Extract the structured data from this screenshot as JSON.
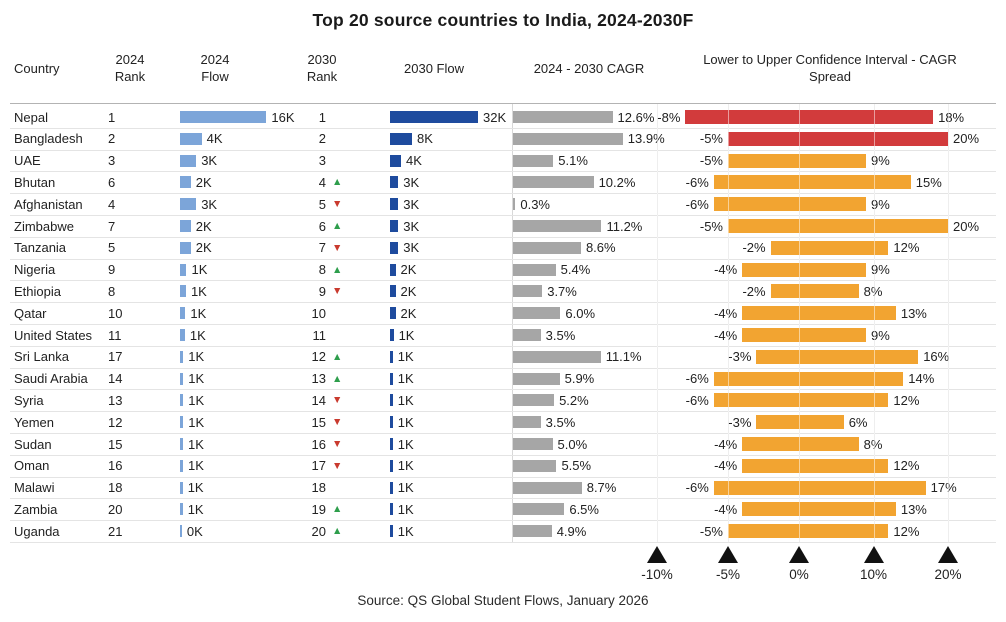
{
  "title": "Top 20 source countries to India, 2024-2030F",
  "source": "Source: QS Global Student Flows, January 2026",
  "header": {
    "country": "Country",
    "rank_2024": "2024 Rank",
    "flow_2024": "2024 Flow",
    "rank_2030": "2030 Rank",
    "flow_2030": "2030 Flow",
    "cagr": "2024 - 2030 CAGR",
    "ci": "Lower to Upper Confidence Interval - CAGR Spread"
  },
  "colors": {
    "flow_2024_bar": "#7CA5D9",
    "flow_2030_bar": "#1E4B9E",
    "cagr_bar": "#A6A6A6",
    "ci_orange": "#F2A431",
    "ci_red": "#D23B3C",
    "arrow_up": "#2E9E4C",
    "arrow_down": "#C93A2E"
  },
  "axis": {
    "ticks": [
      {
        "label": "-10%",
        "value": -10
      },
      {
        "label": "-5%",
        "value": -5
      },
      {
        "label": "0%",
        "value": 0
      },
      {
        "label": "10%",
        "value": 10
      },
      {
        "label": "20%",
        "value": 20
      }
    ]
  },
  "chart_data": {
    "type": "table",
    "title": "Top 20 source countries to India, 2024-2030F",
    "columns": [
      "Country",
      "2024 Rank",
      "2024 Flow",
      "2030 Rank",
      "2030 Flow",
      "2024 - 2030 CAGR",
      "Lower to Upper Confidence Interval - CAGR Spread"
    ],
    "rows": [
      {
        "country": "Nepal",
        "rank_2024": "1",
        "flow_2024_label": "16K",
        "flow_2024_value": 16,
        "rank_2030": "1",
        "rank_change": "none",
        "flow_2030_label": "32K",
        "flow_2030_value": 32,
        "cagr_label": "12.6%",
        "cagr_value": 12.6,
        "ci_low_label": "-8%",
        "ci_low": -8,
        "ci_high_label": "18%",
        "ci_high": 18,
        "ci_color": "red"
      },
      {
        "country": "Bangladesh",
        "rank_2024": "2",
        "flow_2024_label": "4K",
        "flow_2024_value": 4,
        "rank_2030": "2",
        "rank_change": "none",
        "flow_2030_label": "8K",
        "flow_2030_value": 8,
        "cagr_label": "13.9%",
        "cagr_value": 13.9,
        "ci_low_label": "-5%",
        "ci_low": -5,
        "ci_high_label": "20%",
        "ci_high": 20,
        "ci_color": "red"
      },
      {
        "country": "UAE",
        "rank_2024": "3",
        "flow_2024_label": "3K",
        "flow_2024_value": 3,
        "rank_2030": "3",
        "rank_change": "none",
        "flow_2030_label": "4K",
        "flow_2030_value": 4,
        "cagr_label": "5.1%",
        "cagr_value": 5.1,
        "ci_low_label": "-5%",
        "ci_low": -5,
        "ci_high_label": "9%",
        "ci_high": 9,
        "ci_color": "orange"
      },
      {
        "country": "Bhutan",
        "rank_2024": "6",
        "flow_2024_label": "2K",
        "flow_2024_value": 2,
        "rank_2030": "4",
        "rank_change": "up",
        "flow_2030_label": "3K",
        "flow_2030_value": 3,
        "cagr_label": "10.2%",
        "cagr_value": 10.2,
        "ci_low_label": "-6%",
        "ci_low": -6,
        "ci_high_label": "15%",
        "ci_high": 15,
        "ci_color": "orange"
      },
      {
        "country": "Afghanistan",
        "rank_2024": "4",
        "flow_2024_label": "3K",
        "flow_2024_value": 3,
        "rank_2030": "5",
        "rank_change": "down",
        "flow_2030_label": "3K",
        "flow_2030_value": 3,
        "cagr_label": "0.3%",
        "cagr_value": 0.3,
        "ci_low_label": "-6%",
        "ci_low": -6,
        "ci_high_label": "9%",
        "ci_high": 9,
        "ci_color": "orange"
      },
      {
        "country": "Zimbabwe",
        "rank_2024": "7",
        "flow_2024_label": "2K",
        "flow_2024_value": 2,
        "rank_2030": "6",
        "rank_change": "up",
        "flow_2030_label": "3K",
        "flow_2030_value": 3,
        "cagr_label": "11.2%",
        "cagr_value": 11.2,
        "ci_low_label": "-5%",
        "ci_low": -5,
        "ci_high_label": "20%",
        "ci_high": 20,
        "ci_color": "orange"
      },
      {
        "country": "Tanzania",
        "rank_2024": "5",
        "flow_2024_label": "2K",
        "flow_2024_value": 2,
        "rank_2030": "7",
        "rank_change": "down",
        "flow_2030_label": "3K",
        "flow_2030_value": 3,
        "cagr_label": "8.6%",
        "cagr_value": 8.6,
        "ci_low_label": "-2%",
        "ci_low": -2,
        "ci_high_label": "12%",
        "ci_high": 12,
        "ci_color": "orange"
      },
      {
        "country": "Nigeria",
        "rank_2024": "9",
        "flow_2024_label": "1K",
        "flow_2024_value": 1.2,
        "rank_2030": "8",
        "rank_change": "up",
        "flow_2030_label": "2K",
        "flow_2030_value": 2,
        "cagr_label": "5.4%",
        "cagr_value": 5.4,
        "ci_low_label": "-4%",
        "ci_low": -4,
        "ci_high_label": "9%",
        "ci_high": 9,
        "ci_color": "orange"
      },
      {
        "country": "Ethiopia",
        "rank_2024": "8",
        "flow_2024_label": "1K",
        "flow_2024_value": 1.1,
        "rank_2030": "9",
        "rank_change": "down",
        "flow_2030_label": "2K",
        "flow_2030_value": 2,
        "cagr_label": "3.7%",
        "cagr_value": 3.7,
        "ci_low_label": "-2%",
        "ci_low": -2,
        "ci_high_label": "8%",
        "ci_high": 8,
        "ci_color": "orange"
      },
      {
        "country": "Qatar",
        "rank_2024": "10",
        "flow_2024_label": "1K",
        "flow_2024_value": 1,
        "rank_2030": "10",
        "rank_change": "none",
        "flow_2030_label": "2K",
        "flow_2030_value": 2,
        "cagr_label": "6.0%",
        "cagr_value": 6.0,
        "ci_low_label": "-4%",
        "ci_low": -4,
        "ci_high_label": "13%",
        "ci_high": 13,
        "ci_color": "orange"
      },
      {
        "country": "United States",
        "rank_2024": "11",
        "flow_2024_label": "1K",
        "flow_2024_value": 0.9,
        "rank_2030": "11",
        "rank_change": "none",
        "flow_2030_label": "1K",
        "flow_2030_value": 1.3,
        "cagr_label": "3.5%",
        "cagr_value": 3.5,
        "ci_low_label": "-4%",
        "ci_low": -4,
        "ci_high_label": "9%",
        "ci_high": 9,
        "ci_color": "orange"
      },
      {
        "country": "Sri Lanka",
        "rank_2024": "17",
        "flow_2024_label": "1K",
        "flow_2024_value": 0.6,
        "rank_2030": "12",
        "rank_change": "up",
        "flow_2030_label": "1K",
        "flow_2030_value": 1,
        "cagr_label": "11.1%",
        "cagr_value": 11.1,
        "ci_low_label": "-3%",
        "ci_low": -3,
        "ci_high_label": "16%",
        "ci_high": 16,
        "ci_color": "orange"
      },
      {
        "country": "Saudi Arabia",
        "rank_2024": "14",
        "flow_2024_label": "1K",
        "flow_2024_value": 0.6,
        "rank_2030": "13",
        "rank_change": "up",
        "flow_2030_label": "1K",
        "flow_2030_value": 1,
        "cagr_label": "5.9%",
        "cagr_value": 5.9,
        "ci_low_label": "-6%",
        "ci_low": -6,
        "ci_high_label": "14%",
        "ci_high": 14,
        "ci_color": "orange"
      },
      {
        "country": "Syria",
        "rank_2024": "13",
        "flow_2024_label": "1K",
        "flow_2024_value": 0.6,
        "rank_2030": "14",
        "rank_change": "down",
        "flow_2030_label": "1K",
        "flow_2030_value": 1,
        "cagr_label": "5.2%",
        "cagr_value": 5.2,
        "ci_low_label": "-6%",
        "ci_low": -6,
        "ci_high_label": "12%",
        "ci_high": 12,
        "ci_color": "orange"
      },
      {
        "country": "Yemen",
        "rank_2024": "12",
        "flow_2024_label": "1K",
        "flow_2024_value": 0.6,
        "rank_2030": "15",
        "rank_change": "down",
        "flow_2030_label": "1K",
        "flow_2030_value": 1,
        "cagr_label": "3.5%",
        "cagr_value": 3.5,
        "ci_low_label": "-3%",
        "ci_low": -3,
        "ci_high_label": "6%",
        "ci_high": 6,
        "ci_color": "orange"
      },
      {
        "country": "Sudan",
        "rank_2024": "15",
        "flow_2024_label": "1K",
        "flow_2024_value": 0.55,
        "rank_2030": "16",
        "rank_change": "down",
        "flow_2030_label": "1K",
        "flow_2030_value": 1,
        "cagr_label": "5.0%",
        "cagr_value": 5.0,
        "ci_low_label": "-4%",
        "ci_low": -4,
        "ci_high_label": "8%",
        "ci_high": 8,
        "ci_color": "orange"
      },
      {
        "country": "Oman",
        "rank_2024": "16",
        "flow_2024_label": "1K",
        "flow_2024_value": 0.55,
        "rank_2030": "17",
        "rank_change": "down",
        "flow_2030_label": "1K",
        "flow_2030_value": 1,
        "cagr_label": "5.5%",
        "cagr_value": 5.5,
        "ci_low_label": "-4%",
        "ci_low": -4,
        "ci_high_label": "12%",
        "ci_high": 12,
        "ci_color": "orange"
      },
      {
        "country": "Malawi",
        "rank_2024": "18",
        "flow_2024_label": "1K",
        "flow_2024_value": 0.5,
        "rank_2030": "18",
        "rank_change": "none",
        "flow_2030_label": "1K",
        "flow_2030_value": 1,
        "cagr_label": "8.7%",
        "cagr_value": 8.7,
        "ci_low_label": "-6%",
        "ci_low": -6,
        "ci_high_label": "17%",
        "ci_high": 17,
        "ci_color": "orange"
      },
      {
        "country": "Zambia",
        "rank_2024": "20",
        "flow_2024_label": "1K",
        "flow_2024_value": 0.5,
        "rank_2030": "19",
        "rank_change": "up",
        "flow_2030_label": "1K",
        "flow_2030_value": 1,
        "cagr_label": "6.5%",
        "cagr_value": 6.5,
        "ci_low_label": "-4%",
        "ci_low": -4,
        "ci_high_label": "13%",
        "ci_high": 13,
        "ci_color": "orange"
      },
      {
        "country": "Uganda",
        "rank_2024": "21",
        "flow_2024_label": "0K",
        "flow_2024_value": 0.35,
        "rank_2030": "20",
        "rank_change": "up",
        "flow_2030_label": "1K",
        "flow_2030_value": 1,
        "cagr_label": "4.9%",
        "cagr_value": 4.9,
        "ci_low_label": "-5%",
        "ci_low": -5,
        "ci_high_label": "12%",
        "ci_high": 12,
        "ci_color": "orange"
      }
    ]
  }
}
